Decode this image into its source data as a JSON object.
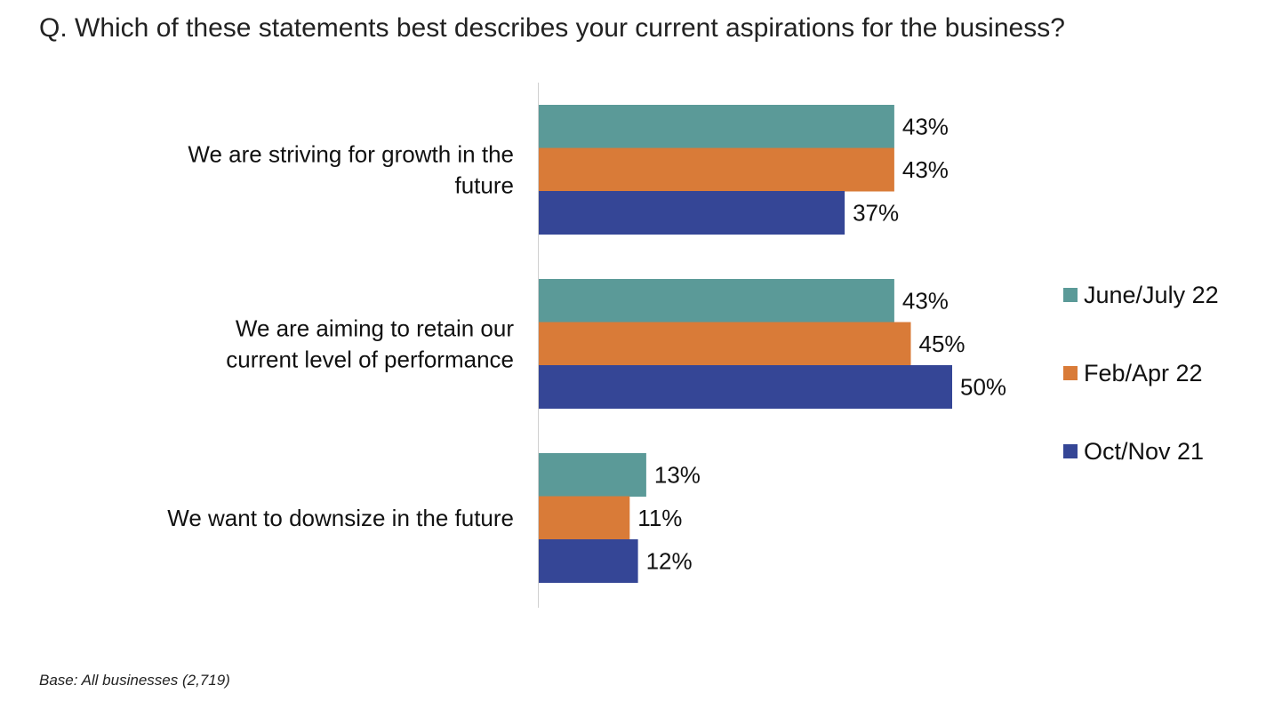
{
  "question": "Q. Which of these statements best describes your current aspirations for the business?",
  "footnote": "Base: All businesses (2,719)",
  "chart_data": {
    "type": "bar",
    "orientation": "horizontal",
    "title": "",
    "xlabel": "",
    "ylabel": "",
    "xlim": [
      0,
      100
    ],
    "grid": false,
    "legend_position": "right",
    "value_suffix": "%",
    "categories": [
      [
        "We are striving for growth in the",
        "future"
      ],
      [
        "We are aiming to retain our",
        "current level of performance"
      ],
      [
        "We want to downsize in the future"
      ]
    ],
    "series": [
      {
        "name": "June/July 22",
        "color": "#5B9A98",
        "values": [
          43,
          43,
          13
        ],
        "labels": [
          "43%",
          "43%",
          "13%"
        ]
      },
      {
        "name": "Feb/Apr 22",
        "color": "#D97B38",
        "values": [
          43,
          45,
          11
        ],
        "labels": [
          "43%",
          "45%",
          "11%"
        ]
      },
      {
        "name": "Oct/Nov 21",
        "color": "#354696",
        "values": [
          37,
          50,
          12
        ],
        "labels": [
          "37%",
          "50%",
          "12%"
        ]
      }
    ]
  }
}
